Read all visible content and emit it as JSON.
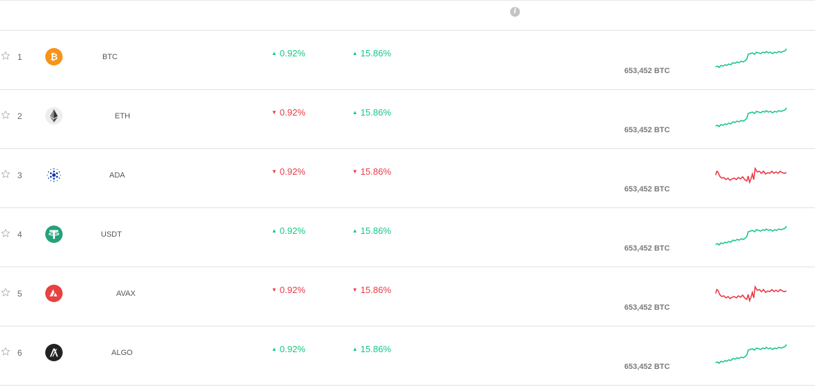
{
  "colors": {
    "up": "#16c784",
    "down": "#ea3943"
  },
  "header": {
    "info_icon": "info-icon"
  },
  "rows": [
    {
      "rank": "1",
      "symbol": "BTC",
      "icon": "bitcoin-icon",
      "change_1h": "0.92%",
      "change_1h_dir": "up",
      "change_24h": "15.86%",
      "change_24h_dir": "up",
      "supply": "653,452 BTC",
      "sparkline": "up"
    },
    {
      "rank": "2",
      "symbol": "ETH",
      "icon": "ethereum-icon",
      "change_1h": "0.92%",
      "change_1h_dir": "down",
      "change_24h": "15.86%",
      "change_24h_dir": "up",
      "supply": "653,452 BTC",
      "sparkline": "up"
    },
    {
      "rank": "3",
      "symbol": "ADA",
      "icon": "cardano-icon",
      "change_1h": "0.92%",
      "change_1h_dir": "down",
      "change_24h": "15.86%",
      "change_24h_dir": "down",
      "supply": "653,452 BTC",
      "sparkline": "down"
    },
    {
      "rank": "4",
      "symbol": "USDT",
      "icon": "tether-icon",
      "change_1h": "0.92%",
      "change_1h_dir": "up",
      "change_24h": "15.86%",
      "change_24h_dir": "up",
      "supply": "653,452 BTC",
      "sparkline": "up"
    },
    {
      "rank": "5",
      "symbol": "AVAX",
      "icon": "avalanche-icon",
      "change_1h": "0.92%",
      "change_1h_dir": "down",
      "change_24h": "15.86%",
      "change_24h_dir": "down",
      "supply": "653,452 BTC",
      "sparkline": "down"
    },
    {
      "rank": "6",
      "symbol": "ALGO",
      "icon": "algorand-icon",
      "change_1h": "0.92%",
      "change_1h_dir": "up",
      "change_24h": "15.86%",
      "change_24h_dir": "up",
      "supply": "653,452 BTC",
      "sparkline": "up"
    }
  ]
}
